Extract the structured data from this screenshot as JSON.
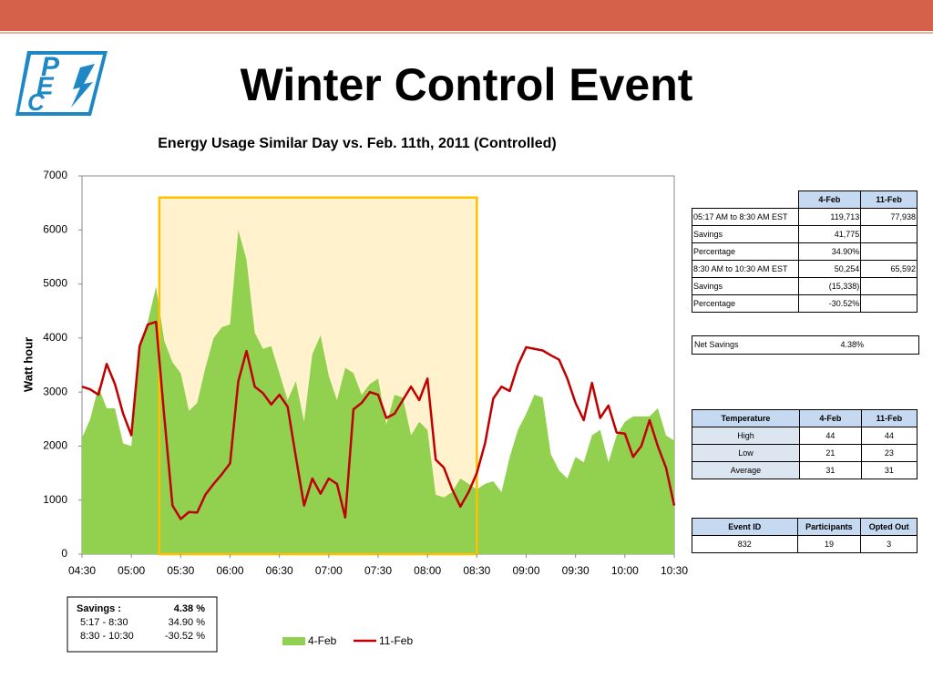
{
  "logo": [
    "P",
    "E",
    "C"
  ],
  "title": "Winter Control Event",
  "chart_data": {
    "type": "area-line",
    "title": "Energy Usage Similar Day vs. Feb. 11th, 2011 (Controlled)",
    "y_label": "Watt hour",
    "x": [
      270,
      275,
      280,
      285,
      290,
      295,
      300,
      305,
      310,
      315,
      320,
      325,
      330,
      335,
      340,
      345,
      350,
      355,
      360,
      365,
      370,
      375,
      380,
      385,
      390,
      395,
      400,
      405,
      410,
      415,
      420,
      425,
      430,
      435,
      440,
      445,
      450,
      455,
      460,
      465,
      470,
      475,
      480,
      485,
      490,
      495,
      500,
      505,
      510,
      515,
      520,
      525,
      530,
      535,
      540,
      545,
      550,
      555,
      560,
      565,
      570,
      575,
      580,
      585,
      590,
      595,
      600,
      605,
      610,
      615,
      620,
      625,
      630
    ],
    "series": [
      {
        "name": "4-Feb",
        "color": "#92d050",
        "kind": "area",
        "values": [
          2150,
          2500,
          3100,
          2700,
          2700,
          2050,
          2000,
          3800,
          4300,
          4950,
          3950,
          3550,
          3350,
          2650,
          2800,
          3450,
          4000,
          4200,
          4250,
          6000,
          5450,
          4100,
          3800,
          3850,
          3350,
          2850,
          3200,
          2450,
          3700,
          4050,
          3300,
          2850,
          3450,
          3350,
          2950,
          3150,
          3250,
          2400,
          2950,
          2900,
          2200,
          2450,
          2300,
          1100,
          1050,
          1150,
          1400,
          1300,
          1200,
          1300,
          1350,
          1150,
          1800,
          2300,
          2600,
          2950,
          2900,
          1850,
          1550,
          1400,
          1800,
          1700,
          2200,
          2300,
          1700,
          2200,
          2450,
          2550,
          2550,
          2550,
          2700,
          2200,
          2100
        ]
      },
      {
        "name": "11-Feb",
        "color": "#c00000",
        "kind": "line",
        "values": [
          3100,
          3050,
          2950,
          3520,
          3150,
          2600,
          2200,
          3850,
          4250,
          4300,
          2550,
          900,
          650,
          780,
          770,
          1100,
          1300,
          1480,
          1680,
          3200,
          3760,
          3100,
          2980,
          2770,
          2950,
          2730,
          1800,
          900,
          1400,
          1120,
          1400,
          1300,
          680,
          2680,
          2800,
          3000,
          2950,
          2520,
          2600,
          2850,
          3100,
          2850,
          3250,
          1750,
          1600,
          1200,
          880,
          1150,
          1500,
          2050,
          2880,
          3100,
          3020,
          3500,
          3830,
          3800,
          3770,
          3680,
          3600,
          3250,
          2800,
          2480,
          3170,
          2520,
          2750,
          2250,
          2230,
          1800,
          2000,
          2480,
          2000,
          1600,
          900
        ]
      }
    ],
    "xlim": [
      270,
      630
    ],
    "xticks": [
      {
        "value": 270,
        "label": "04:30"
      },
      {
        "value": 300,
        "label": "05:00"
      },
      {
        "value": 330,
        "label": "05:30"
      },
      {
        "value": 360,
        "label": "06:00"
      },
      {
        "value": 390,
        "label": "06:30"
      },
      {
        "value": 420,
        "label": "07:00"
      },
      {
        "value": 450,
        "label": "07:30"
      },
      {
        "value": 480,
        "label": "08:00"
      },
      {
        "value": 510,
        "label": "08:30"
      },
      {
        "value": 540,
        "label": "09:00"
      },
      {
        "value": 570,
        "label": "09:30"
      },
      {
        "value": 600,
        "label": "10:00"
      },
      {
        "value": 630,
        "label": "10:30"
      }
    ],
    "ylim": [
      0,
      7000
    ],
    "yticks": [
      0,
      1000,
      2000,
      3000,
      4000,
      5000,
      6000,
      7000
    ],
    "grid": false,
    "highlight": {
      "x": [
        317,
        510
      ],
      "y": [
        0,
        6600
      ],
      "fill": "#fff2cc",
      "stroke": "#ffc000"
    }
  },
  "savings_box": [
    [
      "Savings :",
      "4.38 %"
    ],
    [
      "5:17 -  8:30",
      "34.90 %"
    ],
    [
      "8:30 - 10:30",
      "-30.52 %"
    ]
  ],
  "usage_table": {
    "header": [
      "4-Feb",
      "11-Feb"
    ],
    "rows": [
      [
        "05:17 AM to 8:30 AM EST",
        "119,713",
        "77,938"
      ],
      [
        "Savings",
        "41,775"
      ],
      [
        "Percentage",
        "34.90%"
      ],
      [
        "8:30 AM to 10:30 AM EST",
        "50,254",
        "65,592"
      ],
      [
        "Savings",
        "(15,338)"
      ],
      [
        "Percentage",
        "-30.52%"
      ]
    ]
  },
  "net_savings": [
    "Net Savings",
    "4.38%"
  ],
  "temperature_table": {
    "header": [
      "Temperature",
      "4-Feb",
      "11-Feb"
    ],
    "rows": [
      [
        "High",
        "44",
        "44"
      ],
      [
        "Low",
        "21",
        "23"
      ],
      [
        "Average",
        "31",
        "31"
      ]
    ]
  },
  "event_table": {
    "header": [
      "Event ID",
      "Participants",
      "Opted Out"
    ],
    "rows": [
      [
        "832",
        "19",
        "3"
      ]
    ]
  }
}
